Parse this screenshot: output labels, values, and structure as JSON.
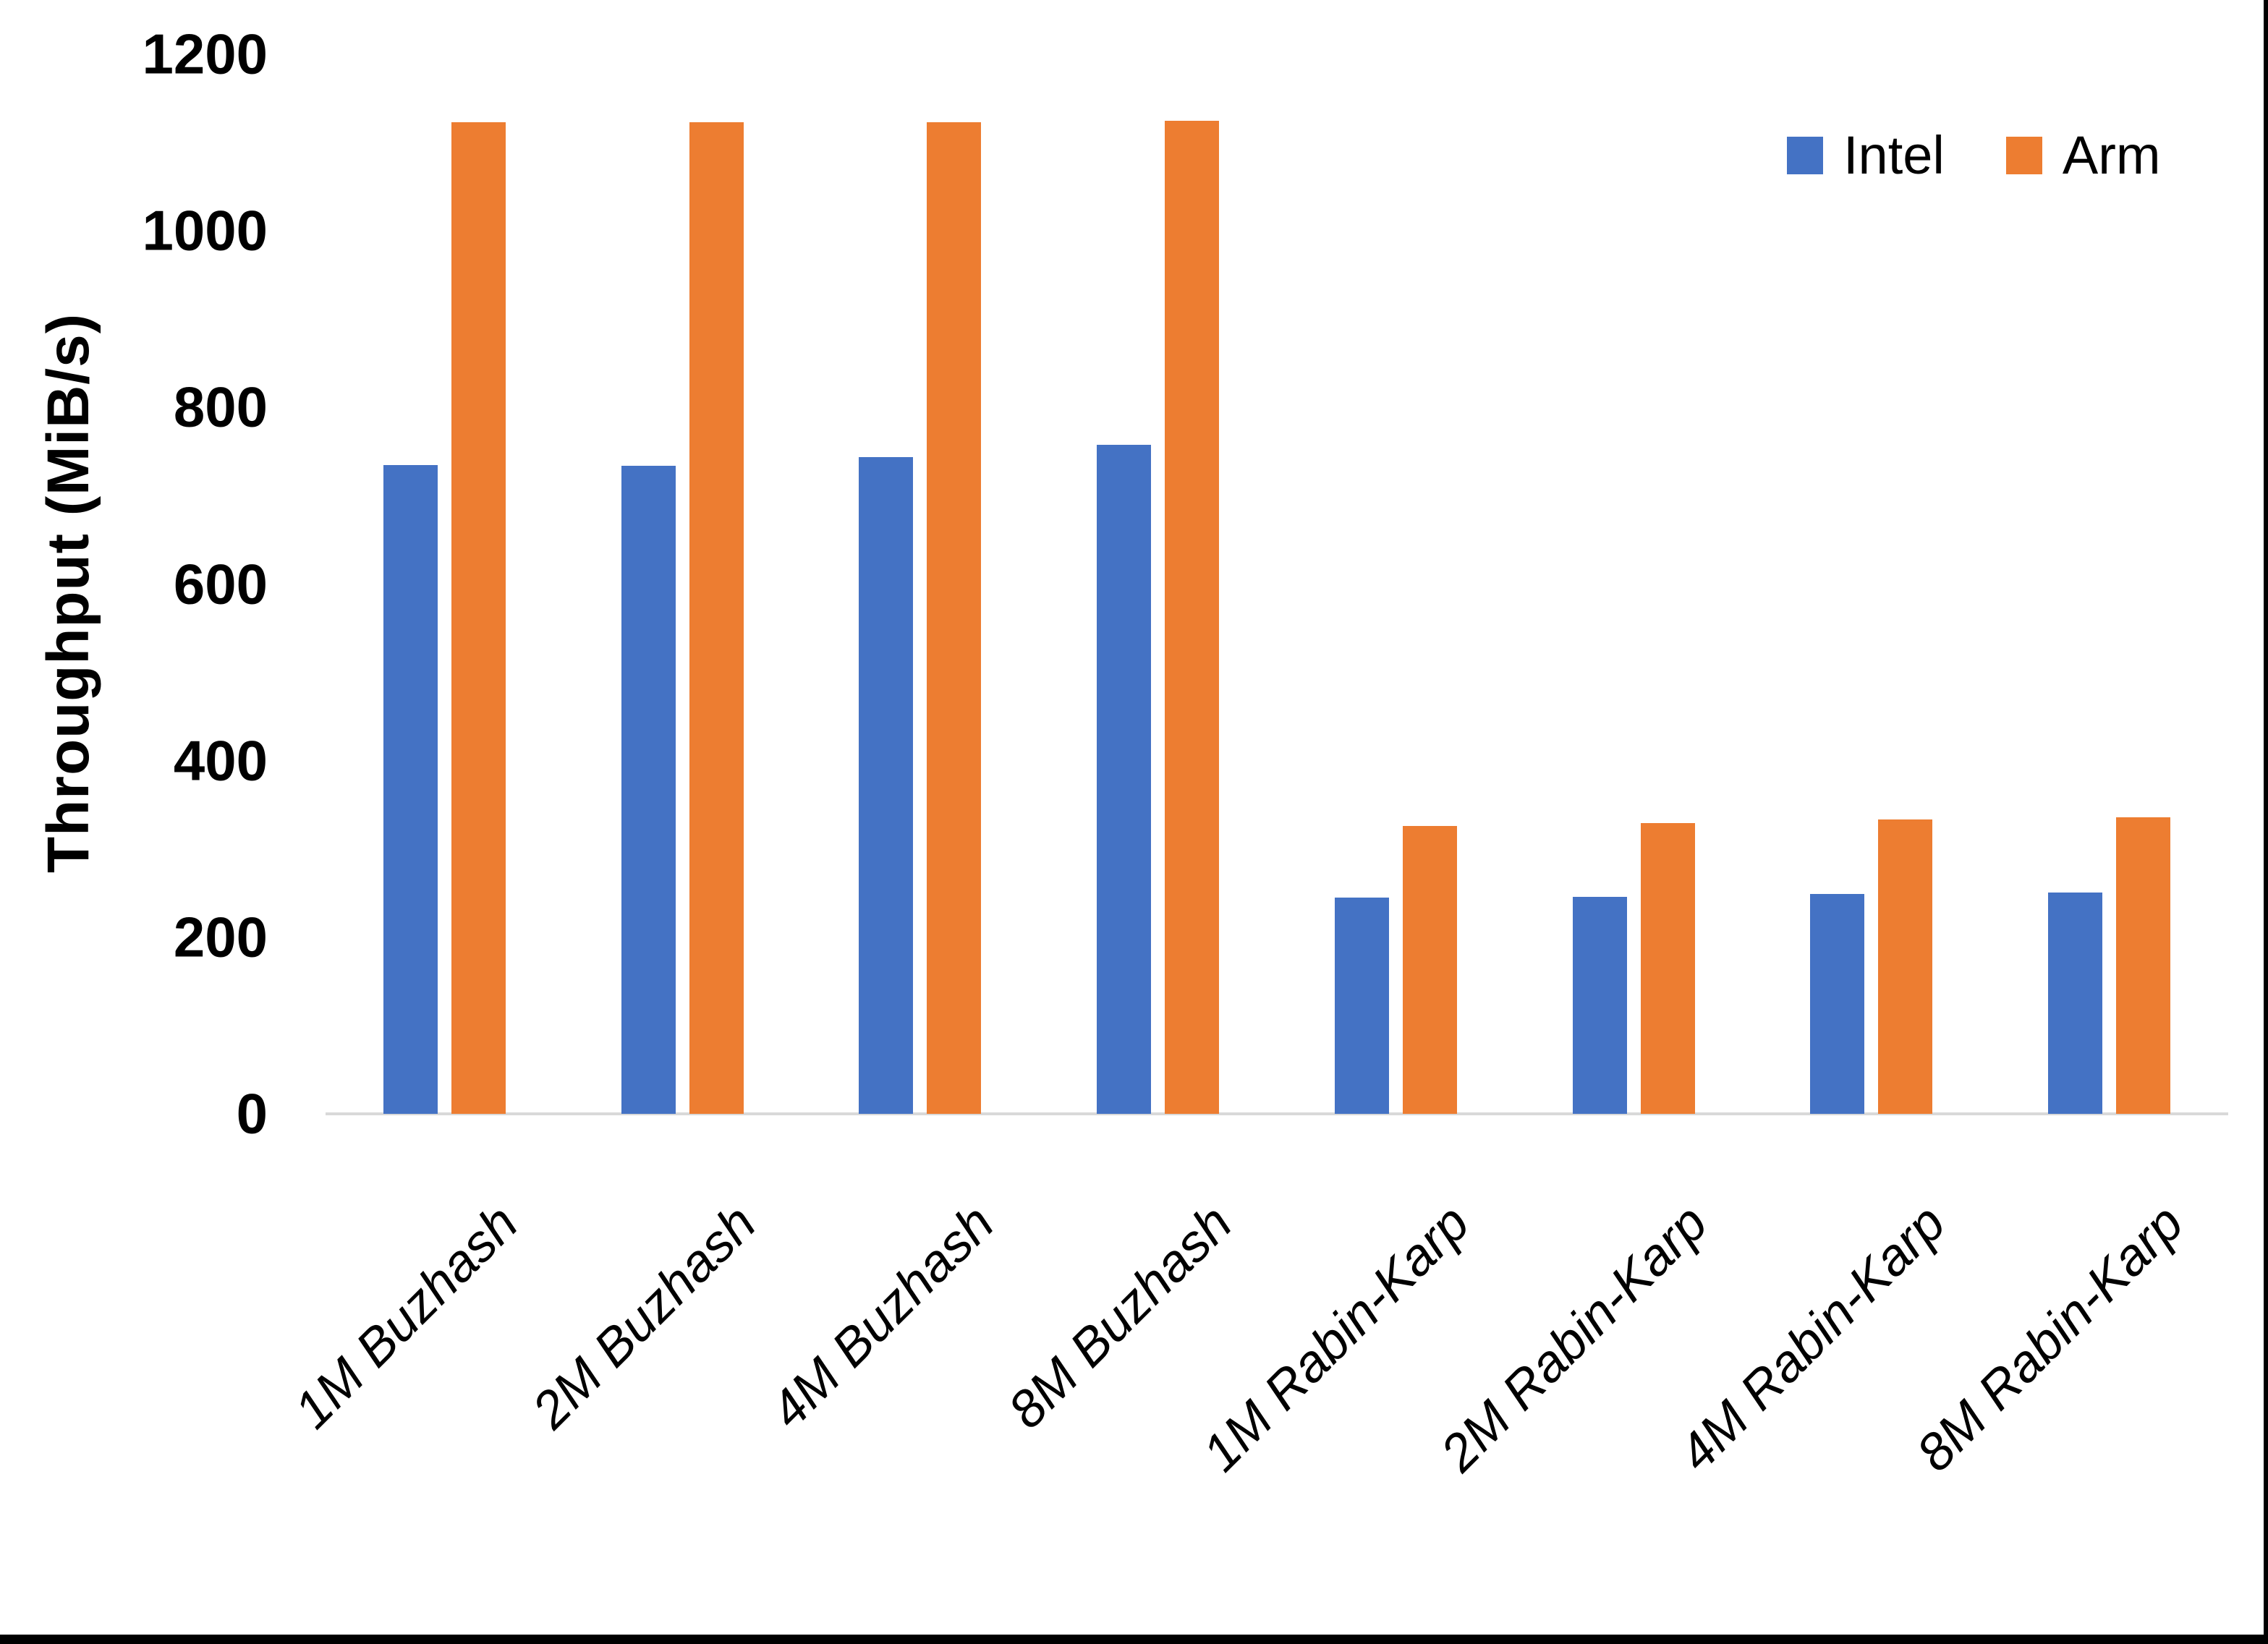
{
  "page": {
    "background_color": "#ffffff",
    "right_edge_color": "#000000",
    "bottom_edge_color": "#000000"
  },
  "chart_data": {
    "type": "bar",
    "title": "",
    "xlabel": "",
    "ylabel": "Throughput (MiB/s)",
    "categories": [
      "1M Buzhash",
      "2M Buzhash",
      "4M Buzhash",
      "8M Buzhash",
      "1M Rabin-Karp",
      "2M Rabin-Karp",
      "4M Rabin-Karp",
      "8M Rabin-Karp"
    ],
    "series": [
      {
        "name": "Intel",
        "color": "#4472C4",
        "values": [
          735,
          734,
          744,
          758,
          245,
          246,
          249,
          251
        ]
      },
      {
        "name": "Arm",
        "color": "#ED7D31",
        "values": [
          1123,
          1123,
          1123,
          1125,
          326,
          329,
          333,
          336
        ]
      }
    ],
    "ylim": [
      0,
      1200
    ],
    "yticks": [
      0,
      200,
      400,
      600,
      800,
      1000,
      1200
    ],
    "grid": false,
    "legend_position": "top-right",
    "axis_line_color": "#D9D9D9",
    "text_color": "#000000"
  }
}
